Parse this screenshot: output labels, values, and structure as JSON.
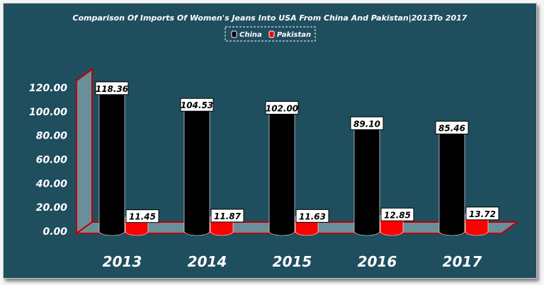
{
  "chart_data": {
    "type": "bar",
    "title": "Comparison Of Imports Of Women's Jeans Into USA From China And Pakistan|2013To 2017",
    "categories": [
      "2013",
      "2014",
      "2015",
      "2016",
      "2017"
    ],
    "series": [
      {
        "name": "China",
        "color": "#000000",
        "values": [
          118.36,
          104.53,
          102.0,
          89.1,
          85.46
        ]
      },
      {
        "name": "Pakistan",
        "color": "#ff0000",
        "values": [
          11.45,
          11.87,
          11.63,
          12.85,
          13.72
        ]
      }
    ],
    "y_ticks": [
      "0.00",
      "20.00",
      "40.00",
      "60.00",
      "80.00",
      "100.00",
      "120.00"
    ],
    "ylim": [
      0,
      120
    ],
    "xlabel": "",
    "ylabel": "",
    "legend_position": "top-center",
    "grid": false
  }
}
